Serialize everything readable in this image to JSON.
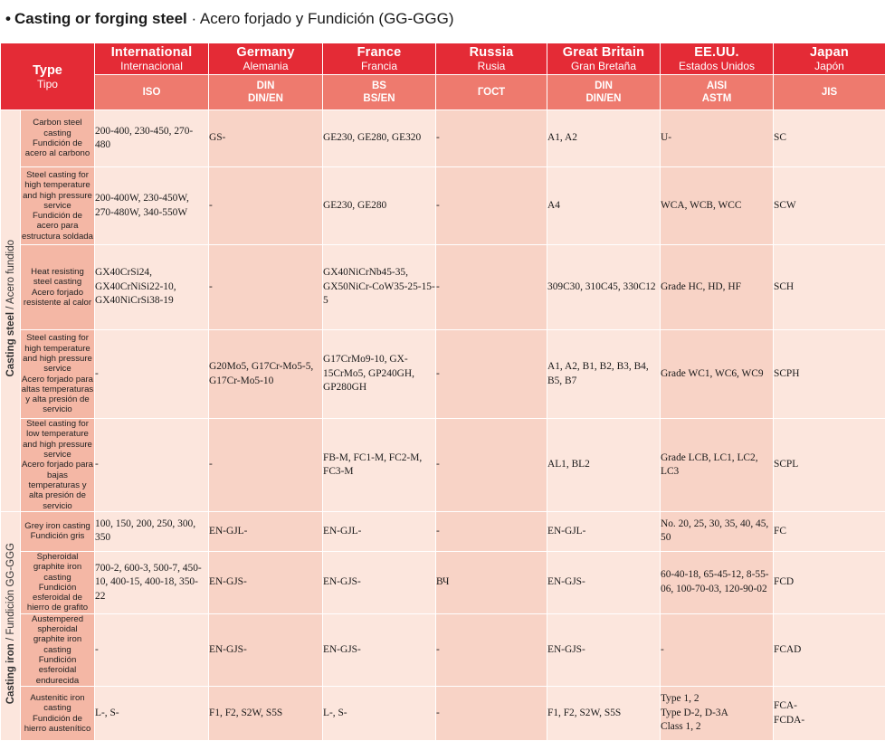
{
  "title": {
    "bullet": "•",
    "english": "Casting or forging steel",
    "separator": " · ",
    "spanish": "Acero forjado y Fundición (GG-GGG)"
  },
  "header": {
    "type": {
      "en": "Type",
      "es": "Tipo"
    },
    "countries": [
      {
        "en": "International",
        "es": "Internacional",
        "std": "ISO"
      },
      {
        "en": "Germany",
        "es": "Alemania",
        "std": "DIN\nDIN/EN"
      },
      {
        "en": "France",
        "es": "Francia",
        "std": "BS\nBS/EN"
      },
      {
        "en": "Russia",
        "es": "Rusia",
        "std": "ГОСТ"
      },
      {
        "en": "Great Britain",
        "es": "Gran Bretaña",
        "std": "DIN\nDIN/EN"
      },
      {
        "en": "EE.UU.",
        "es": "Estados Unidos",
        "std": "AISI\nASTM"
      },
      {
        "en": "Japan",
        "es": "Japón",
        "std": "JIS"
      }
    ]
  },
  "groups": [
    {
      "en": "Casting steel",
      "es": " / Acero fundido"
    },
    {
      "en": "Casting iron",
      "es": " / Fundición GG-GGG"
    }
  ],
  "rows": [
    {
      "desc_en": "Carbon steel casting",
      "desc_es": "Fundición de acero al carbono",
      "cells": [
        "200-400, 230-450, 270-480",
        "GS-",
        "GE230, GE280, GE320",
        "-",
        "A1, A2",
        "U-",
        "SC"
      ]
    },
    {
      "desc_en": "Steel casting for high temperature and high pressure service",
      "desc_es": "Fundición de acero para estructura soldada",
      "cells": [
        "200-400W, 230-450W, 270-480W, 340-550W",
        "-",
        "GE230, GE280",
        "-",
        "A4",
        "WCA, WCB, WCC",
        "SCW"
      ]
    },
    {
      "desc_en": "Heat resisting steel casting",
      "desc_es": "Acero forjado resistente al calor",
      "cells": [
        "GX40CrSi24, GX40CrNiSi22-10, GX40NiCrSi38-19",
        "-",
        "GX40NiCrNb45-35, GX50NiCr-CoW35-25-15-5",
        "-",
        "309C30, 310C45, 330C12",
        "Grade HC, HD, HF",
        "SCH"
      ]
    },
    {
      "desc_en": "Steel casting for high temperature and high pressure service",
      "desc_es": "Acero forjado para altas temperaturas y alta presión de servicio",
      "cells": [
        "-",
        "G20Mo5, G17Cr-Mo5-5, G17Cr-Mo5-10",
        "G17CrMo9-10, GX-15CrMo5, GP240GH, GP280GH",
        "-",
        "A1, A2, B1, B2, B3, B4, B5, B7",
        "Grade WC1, WC6, WC9",
        "SCPH"
      ]
    },
    {
      "desc_en": "Steel casting for low temperature and high pressure service",
      "desc_es": "Acero forjado para bajas temperaturas y alta presión de servicio",
      "cells": [
        "-",
        "-",
        "FB-M, FC1-M, FC2-M, FC3-M",
        "-",
        "AL1, BL2",
        "Grade LCB, LC1, LC2, LC3",
        "SCPL"
      ]
    },
    {
      "desc_en": "Grey iron casting",
      "desc_es": "Fundición gris",
      "cells": [
        "100, 150, 200, 250, 300, 350",
        "EN-GJL-",
        "EN-GJL-",
        "-",
        "EN-GJL-",
        "No. 20, 25, 30, 35, 40, 45, 50",
        "FC"
      ]
    },
    {
      "desc_en": "Spheroidal graphite iron casting",
      "desc_es": "Fundición esferoidal de hierro de grafito",
      "cells": [
        "700-2, 600-3, 500-7, 450-10, 400-15, 400-18, 350-22",
        "EN-GJS-",
        "EN-GJS-",
        "ВЧ",
        "EN-GJS-",
        "60-40-18, 65-45-12, 8-55-06, 100-70-03, 120-90-02",
        "FCD"
      ]
    },
    {
      "desc_en": "Austempered spheroidal graphite iron casting",
      "desc_es": "Fundición esferoidal endurecida",
      "cells": [
        "-",
        "EN-GJS-",
        "EN-GJS-",
        "-",
        "EN-GJS-",
        "-",
        "FCAD"
      ]
    },
    {
      "desc_en": "Austenitic iron casting",
      "desc_es": "Fundición de hierro austenítico",
      "cells": [
        "L-, S-",
        "F1, F2, S2W, S5S",
        "L-, S-",
        "-",
        "F1, F2, S2W, S5S",
        "Type 1, 2\nType D-2, D-3A\nClass 1, 2",
        "FCA-\nFCDA-"
      ]
    }
  ]
}
